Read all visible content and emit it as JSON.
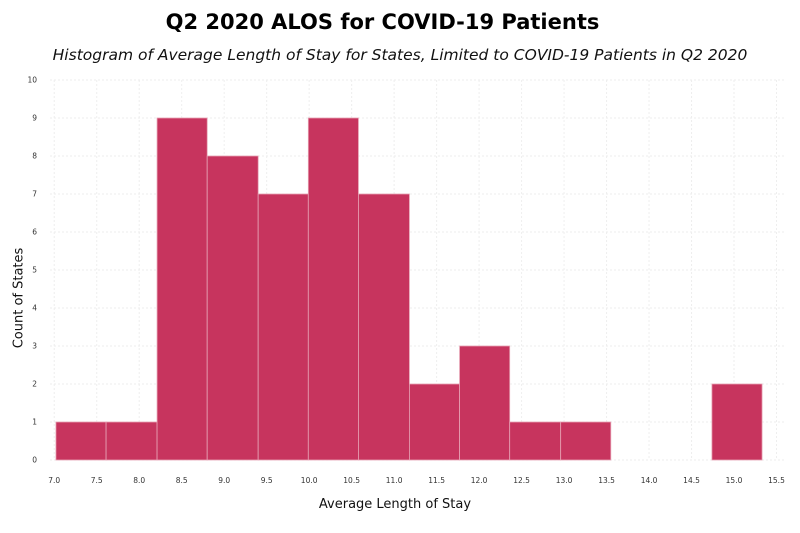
{
  "chart_data": {
    "type": "bar",
    "title": "Q2 2020 ALOS for COVID-19 Patients",
    "subtitle": "Histogram of Average Length of Stay for States, Limited to COVID-19 Patients in Q2 2020",
    "xlabel": "Average Length of Stay",
    "ylabel": "Count of States",
    "xlim": [
      6.95,
      15.6
    ],
    "ylim": [
      0,
      10
    ],
    "x_ticks": [
      7.0,
      7.5,
      8.0,
      8.5,
      9.0,
      9.5,
      10.0,
      10.5,
      11.0,
      11.5,
      12.0,
      12.5,
      13.0,
      13.5,
      14.0,
      14.5,
      15.0,
      15.5
    ],
    "y_ticks": [
      0,
      1,
      2,
      3,
      4,
      5,
      6,
      7,
      8,
      9,
      10
    ],
    "grid": true,
    "bar_color": "#c7345e",
    "bins": [
      {
        "x0": 7.02,
        "x1": 7.61,
        "count": 1
      },
      {
        "x0": 7.61,
        "x1": 8.21,
        "count": 1
      },
      {
        "x0": 8.21,
        "x1": 8.8,
        "count": 9
      },
      {
        "x0": 8.8,
        "x1": 9.4,
        "count": 8
      },
      {
        "x0": 9.4,
        "x1": 9.99,
        "count": 7
      },
      {
        "x0": 9.99,
        "x1": 10.58,
        "count": 9
      },
      {
        "x0": 10.58,
        "x1": 11.18,
        "count": 7
      },
      {
        "x0": 11.18,
        "x1": 11.77,
        "count": 2
      },
      {
        "x0": 11.77,
        "x1": 12.36,
        "count": 3
      },
      {
        "x0": 12.36,
        "x1": 12.96,
        "count": 1
      },
      {
        "x0": 12.96,
        "x1": 13.55,
        "count": 1
      },
      {
        "x0": 13.55,
        "x1": 14.14,
        "count": 0
      },
      {
        "x0": 14.14,
        "x1": 14.74,
        "count": 0
      },
      {
        "x0": 14.74,
        "x1": 15.33,
        "count": 2
      }
    ]
  }
}
